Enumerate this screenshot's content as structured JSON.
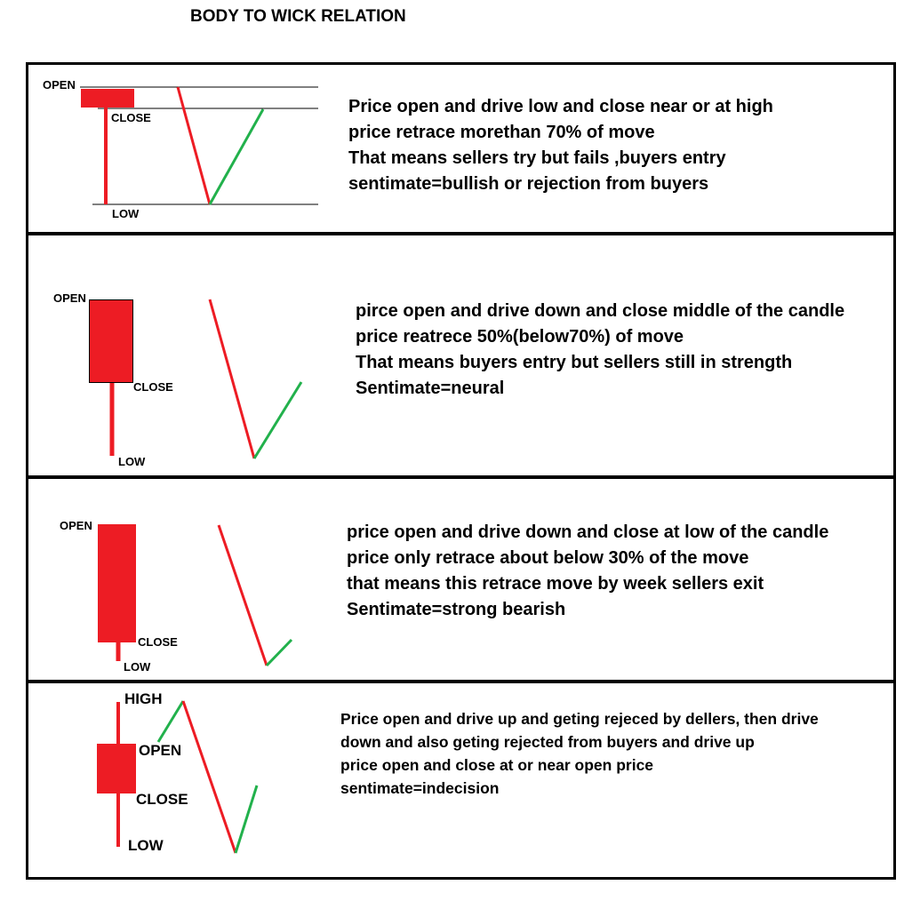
{
  "title": "BODY TO WICK RELATION",
  "colors": {
    "bearish": "#ed1c24",
    "bullish": "#22b14c",
    "border": "#000000"
  },
  "panels": [
    {
      "labels": {
        "open": "OPEN",
        "close": "CLOSE",
        "low": "LOW"
      },
      "lines": [
        "Price open and drive low and close near or at high",
        "price retrace morethan 70% of move",
        "That means sellers try but fails ,buyers entry",
        "sentimate=bullish or rejection from buyers"
      ]
    },
    {
      "labels": {
        "open": "OPEN",
        "close": "CLOSE",
        "low": "LOW"
      },
      "lines": [
        "pirce open and drive down and close middle of the candle",
        "price reatrece 50%(below70%) of move",
        "That means buyers entry but sellers still in strength",
        "Sentimate=neural"
      ]
    },
    {
      "labels": {
        "open": "OPEN",
        "close": "CLOSE",
        "low": "LOW"
      },
      "lines": [
        "price open and drive down and close  at low of the candle",
        "price only retrace about below 30% of the move",
        "that means this retrace move by week sellers exit",
        "Sentimate=strong bearish"
      ]
    },
    {
      "labels": {
        "high": "HIGH",
        "open": "OPEN",
        "close": "CLOSE",
        "low": "LOW"
      },
      "lines": [
        "Price open and drive up and geting rejeced by dellers, then drive",
        "down and also geting rejected from buyers and drive up",
        "price open and close at or near open price",
        "sentimate=indecision"
      ]
    }
  ]
}
